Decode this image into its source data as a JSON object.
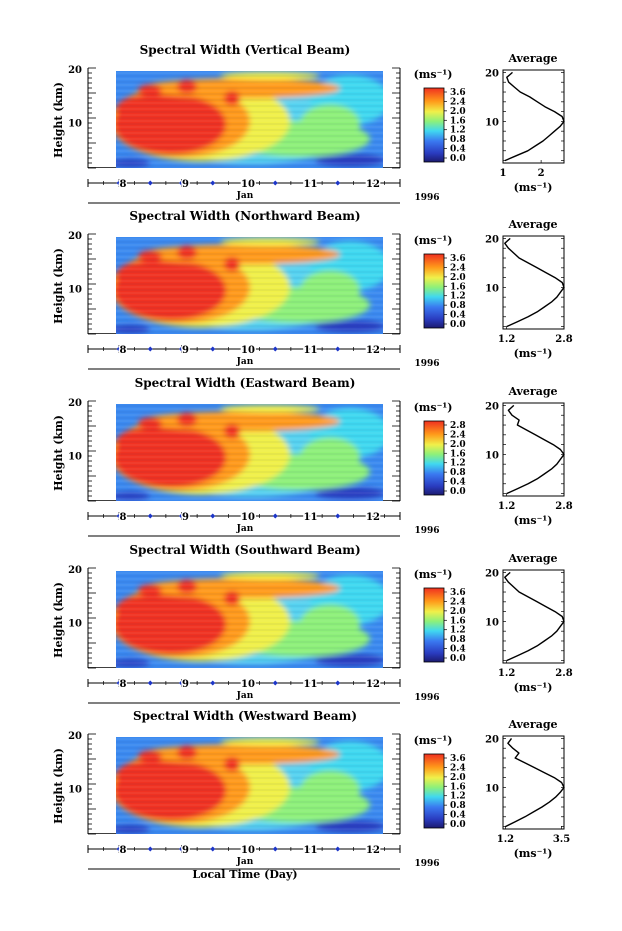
{
  "chart_data": [
    {
      "type": "heatmap",
      "title": "Spectral Width (Vertical Beam)",
      "ylabel": "Height (km)",
      "xlabel": "Jan",
      "year": "1996",
      "y_ticks": [
        "20",
        "10"
      ],
      "x_ticks": [
        "8",
        "9",
        "10",
        "11",
        "12"
      ],
      "colorbar": {
        "unit": "(ms⁻¹)",
        "ticks": [
          "3.6",
          "2.4",
          "2.0",
          "1.6",
          "1.2",
          "0.8",
          "0.4",
          "0.0"
        ]
      },
      "average": {
        "title": "Average",
        "x_ticks": [
          "1",
          "2"
        ],
        "xlabel": "(ms⁻¹)",
        "xlim": [
          1,
          2.6
        ],
        "ylim": [
          1.5,
          20.5
        ],
        "heights": [
          2,
          3,
          4,
          5,
          6,
          7,
          8,
          9,
          10,
          11,
          12,
          13,
          14,
          15,
          16,
          17,
          18,
          19,
          20
        ],
        "values": [
          1.05,
          1.35,
          1.65,
          1.85,
          2.05,
          2.2,
          2.35,
          2.5,
          2.6,
          2.55,
          2.35,
          2.1,
          1.9,
          1.7,
          1.45,
          1.3,
          1.15,
          1.1,
          1.25
        ]
      }
    },
    {
      "type": "heatmap",
      "title": "Spectral Width (Northward Beam)",
      "ylabel": "Height (km)",
      "xlabel": "Jan",
      "year": "1996",
      "y_ticks": [
        "20",
        "10"
      ],
      "x_ticks": [
        "8",
        "9",
        "10",
        "11",
        "12"
      ],
      "colorbar": {
        "unit": "(ms⁻¹)",
        "ticks": [
          "3.6",
          "2.4",
          "2.0",
          "1.6",
          "1.2",
          "0.8",
          "0.4",
          "0.0"
        ]
      },
      "average": {
        "title": "Average",
        "x_ticks": [
          "1.2",
          "2.8"
        ],
        "xlabel": "(ms⁻¹)",
        "xlim": [
          1.1,
          2.8
        ],
        "ylim": [
          1.5,
          20.5
        ],
        "heights": [
          2,
          3,
          4,
          5,
          6,
          7,
          8,
          9,
          10,
          11,
          12,
          13,
          14,
          15,
          16,
          17,
          18,
          19,
          20
        ],
        "values": [
          1.2,
          1.5,
          1.8,
          2.05,
          2.25,
          2.45,
          2.6,
          2.7,
          2.8,
          2.75,
          2.55,
          2.3,
          2.05,
          1.8,
          1.55,
          1.4,
          1.25,
          1.15,
          1.3
        ]
      }
    },
    {
      "type": "heatmap",
      "title": "Spectral Width (Eastward Beam)",
      "ylabel": "Height (km)",
      "xlabel": "Jan",
      "year": "1996",
      "y_ticks": [
        "20",
        "10"
      ],
      "x_ticks": [
        "8",
        "9",
        "10",
        "11",
        "12"
      ],
      "colorbar": {
        "unit": "(ms⁻¹)",
        "ticks": [
          "2.8",
          "2.4",
          "2.0",
          "1.6",
          "1.2",
          "0.8",
          "0.4",
          "0.0"
        ]
      },
      "average": {
        "title": "Average",
        "x_ticks": [
          "1.2",
          "2.8"
        ],
        "xlabel": "(ms⁻¹)",
        "xlim": [
          1.1,
          2.8
        ],
        "ylim": [
          1.5,
          20.5
        ],
        "heights": [
          2,
          3,
          4,
          5,
          6,
          7,
          8,
          9,
          10,
          11,
          12,
          13,
          14,
          15,
          16,
          17,
          18,
          19,
          20
        ],
        "values": [
          1.2,
          1.5,
          1.8,
          2.05,
          2.25,
          2.45,
          2.6,
          2.7,
          2.8,
          2.7,
          2.5,
          2.25,
          2.0,
          1.75,
          1.5,
          1.55,
          1.35,
          1.25,
          1.4
        ]
      }
    },
    {
      "type": "heatmap",
      "title": "Spectral Width (Southward Beam)",
      "ylabel": "Height (km)",
      "xlabel": "Jan",
      "year": "1996",
      "y_ticks": [
        "20",
        "10"
      ],
      "x_ticks": [
        "8",
        "9",
        "10",
        "11",
        "12"
      ],
      "colorbar": {
        "unit": "(ms⁻¹)",
        "ticks": [
          "3.6",
          "2.4",
          "2.0",
          "1.6",
          "1.2",
          "0.8",
          "0.4",
          "0.0"
        ]
      },
      "average": {
        "title": "Average",
        "x_ticks": [
          "1.2",
          "2.8"
        ],
        "xlabel": "(ms⁻¹)",
        "xlim": [
          1.1,
          2.8
        ],
        "ylim": [
          1.5,
          20.5
        ],
        "heights": [
          2,
          3,
          4,
          5,
          6,
          7,
          8,
          9,
          10,
          11,
          12,
          13,
          14,
          15,
          16,
          17,
          18,
          19,
          20
        ],
        "values": [
          1.2,
          1.5,
          1.8,
          2.05,
          2.25,
          2.45,
          2.6,
          2.7,
          2.8,
          2.75,
          2.55,
          2.3,
          2.05,
          1.8,
          1.55,
          1.4,
          1.25,
          1.15,
          1.3
        ]
      }
    },
    {
      "type": "heatmap",
      "title": "Spectral Width (Westward Beam)",
      "ylabel": "Height (km)",
      "xlabel": "Jan",
      "year": "1996",
      "y_ticks": [
        "20",
        "10"
      ],
      "x_ticks": [
        "8",
        "9",
        "10",
        "11",
        "12"
      ],
      "colorbar": {
        "unit": "(ms⁻¹)",
        "ticks": [
          "3.6",
          "2.4",
          "2.0",
          "1.6",
          "1.2",
          "0.8",
          "0.4",
          "0.0"
        ]
      },
      "average": {
        "title": "Average",
        "x_ticks": [
          "1.2",
          "3.5"
        ],
        "xlabel": "(ms⁻¹)",
        "xlim": [
          1.1,
          3.6
        ],
        "ylim": [
          1.5,
          20.5
        ],
        "heights": [
          2,
          3,
          4,
          5,
          6,
          7,
          8,
          9,
          10,
          11,
          12,
          13,
          14,
          15,
          16,
          17,
          18,
          19,
          20
        ],
        "values": [
          1.2,
          1.6,
          2.0,
          2.35,
          2.7,
          3.0,
          3.25,
          3.45,
          3.6,
          3.5,
          3.2,
          2.8,
          2.4,
          2.0,
          1.6,
          1.75,
          1.5,
          1.3,
          1.45
        ]
      }
    }
  ],
  "footer_xlabel": "Local Time (Day)",
  "colors": {
    "red": "#f03020",
    "orange": "#ff9a1a",
    "yellow": "#f0f04a",
    "cyan": "#40d8f0",
    "blue": "#3a78f0",
    "navy": "#1c2aa8",
    "tick_marker": "#1d36c8"
  }
}
